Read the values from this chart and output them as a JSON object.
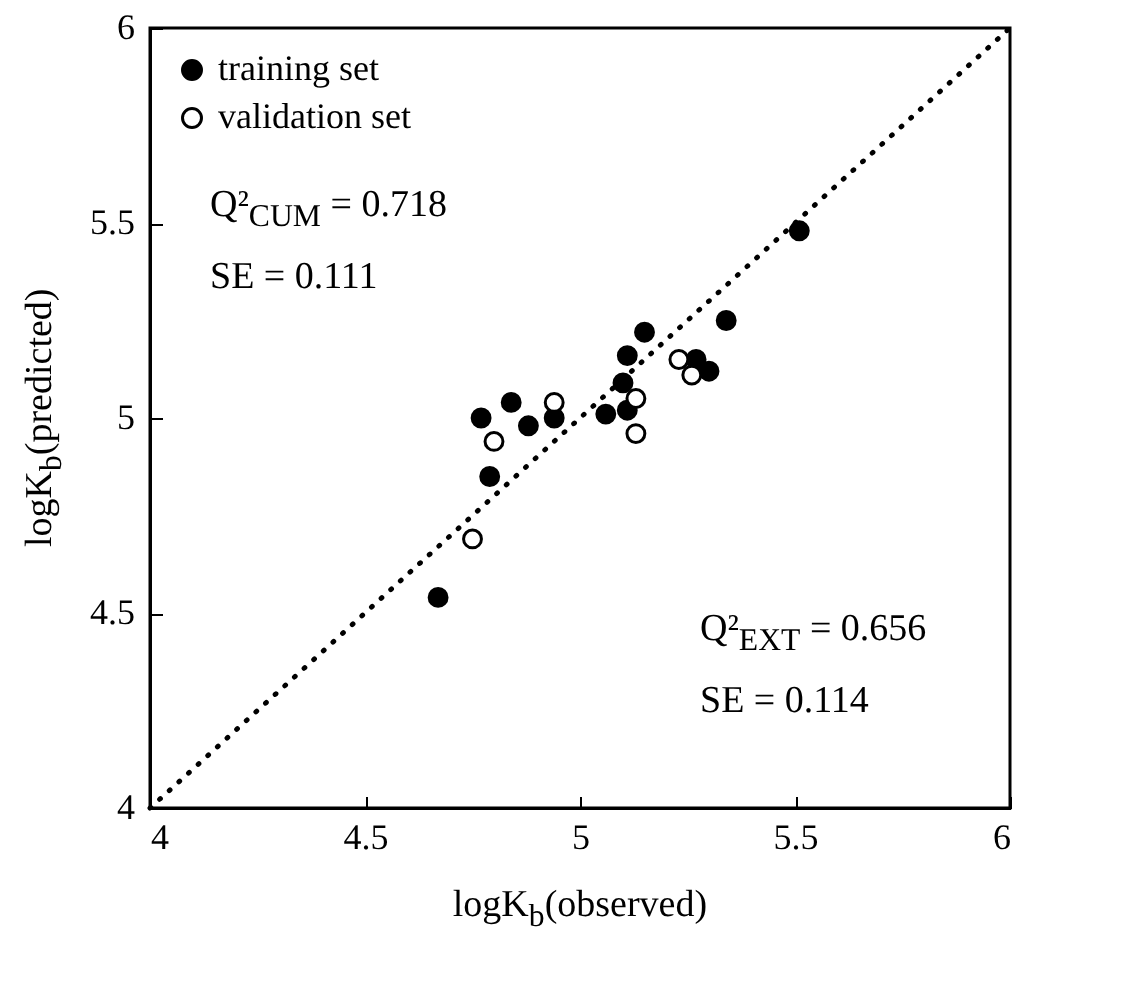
{
  "chart_data": {
    "type": "scatter",
    "xlabel": "logK$_{b}$(observed)",
    "ylabel": "logK$_{b}$(predicted)",
    "annotations": [
      "Q²$_{CUM}$ = 0.718",
      "SE = 0.111",
      "Q²$_{EXT}$ = 0.656",
      "SE = 0.114"
    ],
    "xlim": [
      4,
      6
    ],
    "ylim": [
      4,
      6
    ],
    "xticks": [
      4,
      4.5,
      5,
      5.5,
      6
    ],
    "yticks": [
      4,
      4.5,
      5,
      5.5,
      6
    ],
    "grid": false,
    "legend": "top left",
    "series": [
      {
        "name": "training set",
        "color": "#000000",
        "marker": "circle",
        "x": [
          4.67,
          4.77,
          4.79,
          4.84,
          4.88,
          4.94,
          5.06,
          5.11,
          5.1,
          5.11,
          5.15,
          5.27,
          5.3,
          5.34,
          5.51
        ],
        "values": [
          4.54,
          5.0,
          4.85,
          5.04,
          4.98,
          5.0,
          5.01,
          5.02,
          5.09,
          5.16,
          5.22,
          5.15,
          5.12,
          5.25,
          5.48
        ]
      },
      {
        "name": "validation set",
        "color": "#ffffff",
        "marker": "circle",
        "x": [
          4.75,
          4.8,
          4.94,
          5.13,
          5.13,
          5.23,
          5.26
        ],
        "values": [
          4.69,
          4.94,
          5.04,
          4.96,
          5.05,
          5.15,
          5.11
        ]
      },
      {
        "type": "line",
        "color": "#000000",
        "line_style": "dotted",
        "x": [
          4,
          6
        ],
        "values": [
          4,
          6
        ]
      }
    ]
  }
}
